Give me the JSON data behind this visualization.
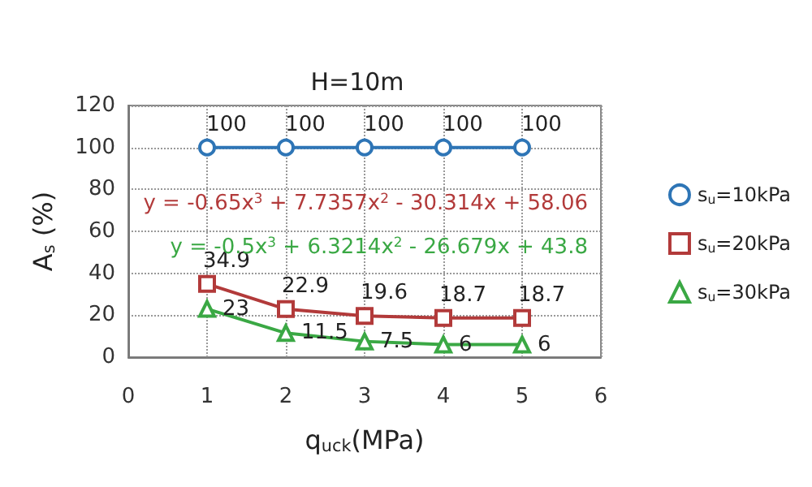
{
  "chart_data": {
    "type": "line",
    "title": "H=10m",
    "xlabel": "q$_{uck}$(MPa)",
    "ylabel": "A$_{s}$ (%)",
    "x": [
      1,
      2,
      3,
      4,
      5
    ],
    "series": [
      {
        "name": "s$_{u}$=10kPa",
        "color": "#2e75b6",
        "marker": "circle",
        "values": [
          100,
          100,
          100,
          100,
          100
        ]
      },
      {
        "name": "s$_{u}$=20kPa",
        "color": "#b23a3a",
        "marker": "square",
        "values": [
          34.9,
          22.9,
          19.6,
          18.7,
          18.7
        ]
      },
      {
        "name": "s$_{u}$=30kPa",
        "color": "#3aa844",
        "marker": "triangle",
        "values": [
          23,
          11.5,
          7.5,
          6,
          6
        ]
      }
    ],
    "annotations": [
      "y = -0.65x$^{3}$ + 7.7357x$^{2}$ - 30.314x + 58.06",
      "y = -0.5x$^{3}$ + 6.3214x$^{2}$ - 26.679x + 43.8"
    ],
    "xlim": [
      0,
      6
    ],
    "xticks": [
      0,
      1,
      2,
      3,
      4,
      5,
      6
    ],
    "ylim": [
      0,
      120
    ],
    "yticks": [
      0,
      20,
      40,
      60,
      80,
      100,
      120
    ],
    "grid": true,
    "legend": "right",
    "data_labels": true,
    "line_style": "solid"
  }
}
